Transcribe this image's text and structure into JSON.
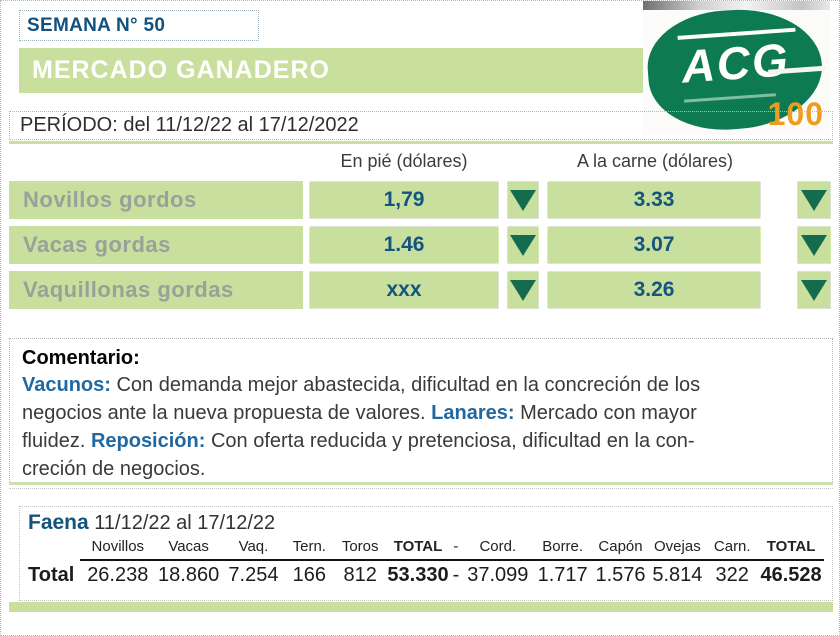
{
  "colors": {
    "accent_green": "#c9df9e",
    "dark_green": "#156b4e",
    "logo_green": "#0d7a52",
    "heading_blue": "#11517e",
    "value_blue": "#14557e",
    "comment_blue": "#2268a0",
    "badge_orange": "#ef9b1d",
    "label_gray": "#9aa199"
  },
  "header": {
    "week_label": "SEMANA N° 50",
    "title": "MERCADO GANADERO",
    "period": "PERÍODO: del  11/12/22  al  17/12/2022",
    "logo_text": "ACG",
    "logo_badge": "100"
  },
  "price_table": {
    "col1_header": "En pié (dólares)",
    "col2_header": "A la carne (dólares)",
    "trend_symbol": "down-triangle",
    "rows": [
      {
        "label": "Novillos gordos",
        "en_pie": "1,79",
        "en_pie_trend": "down",
        "a_la_carne": "3.33",
        "a_la_carne_trend": "down"
      },
      {
        "label": "Vacas gordas",
        "en_pie": "1.46",
        "en_pie_trend": "down",
        "a_la_carne": "3.07",
        "a_la_carne_trend": "down"
      },
      {
        "label": "Vaquillonas gordas",
        "en_pie": "xxx",
        "en_pie_trend": "down",
        "a_la_carne": "3.26",
        "a_la_carne_trend": "down"
      }
    ]
  },
  "comment": {
    "title": "Comentario:",
    "lines": [
      {
        "pre": "",
        "b": "Vacunos:",
        "t": " Con demanda mejor abastecida, dificultad en la concreción de los"
      },
      {
        "pre": "negocios ante la nueva propuesta de valores. ",
        "b": "Lanares:",
        "t": " Mercado con mayor"
      },
      {
        "pre": "fluidez. ",
        "b": "Reposición:",
        "t": " Con oferta reducida y pretenciosa, dificultad en la con-"
      },
      {
        "pre": "creción de negocios.",
        "b": "",
        "t": ""
      }
    ]
  },
  "faena": {
    "title": "Faena",
    "period": " 11/12/22 al 17/12/22",
    "columns": [
      "Novillos",
      "Vacas",
      "Vaq.",
      "Tern.",
      "Toros",
      "TOTAL",
      "-",
      "Cord.",
      "Borre.",
      "Capón",
      "Ovejas",
      "Carn.",
      "TOTAL"
    ],
    "row_label": "Total",
    "values": [
      "26.238",
      "18.860",
      "7.254",
      "166",
      "812",
      "53.330",
      "-",
      "37.099",
      "1.717",
      "1.576",
      "5.814",
      "322",
      "46.528"
    ]
  }
}
